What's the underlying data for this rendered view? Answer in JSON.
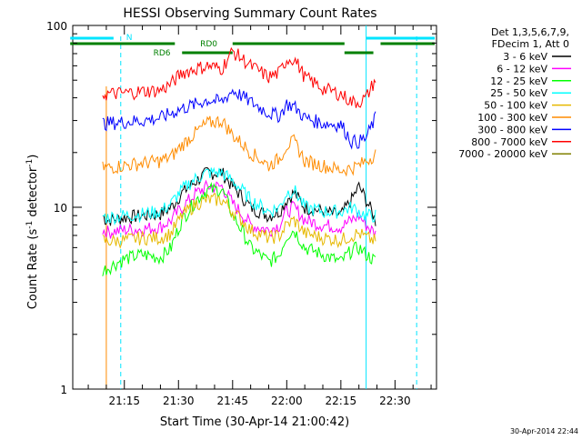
{
  "window": {
    "date_stamp": "30-Apr-2014 22:44"
  },
  "chart_data": {
    "type": "line",
    "title": "HESSI Observing Summary Count Rates",
    "xlabel": "Start Time (30-Apr-14 21:00:42)",
    "ylabel_main": "Count Rate (s",
    "ylabel_sup1": "-1",
    "ylabel_mid": " detector",
    "ylabel_sup2": "-1",
    "ylabel_end": ")",
    "y_scale": "log",
    "ylim": [
      1,
      100
    ],
    "xlim_minutes": [
      21.0,
      22.6
    ],
    "x_ticks": [
      "21:15",
      "21:30",
      "21:45",
      "22:00",
      "22:15",
      "22:30"
    ],
    "y_ticks": [
      "1",
      "10",
      "100"
    ],
    "grid": false,
    "legend_position": "right",
    "legend_header": [
      "Det 1,3,5,6,7,9,",
      "FDecim 1, Att 0"
    ],
    "series": [
      {
        "name": "3 - 6 keV",
        "color": "#000000",
        "x": [
          "21:09",
          "21:10",
          "21:15",
          "21:20",
          "21:25",
          "21:28",
          "21:31",
          "21:35",
          "21:38",
          "21:42",
          "21:45",
          "21:50",
          "21:55",
          "21:58",
          "22:00",
          "22:02",
          "22:05",
          "22:10",
          "22:15",
          "22:18",
          "22:20",
          "22:22",
          "22:25"
        ],
        "y": [
          9,
          8.5,
          8.8,
          9,
          9.2,
          10,
          12,
          14,
          15.5,
          15.5,
          13,
          10,
          9,
          9.5,
          11,
          12,
          10,
          9.5,
          9,
          11,
          13,
          11,
          8
        ]
      },
      {
        "name": "6 - 12 keV",
        "color": "#ff00ff",
        "x": [
          "21:09",
          "21:10",
          "21:15",
          "21:20",
          "21:25",
          "21:28",
          "21:31",
          "21:35",
          "21:38",
          "21:42",
          "21:45",
          "21:50",
          "21:55",
          "21:58",
          "22:00",
          "22:02",
          "22:05",
          "22:10",
          "22:15",
          "22:18",
          "22:20",
          "22:22",
          "22:25"
        ],
        "y": [
          7.5,
          7.3,
          7.5,
          7.6,
          7.8,
          8.5,
          10,
          12,
          13,
          13,
          10.5,
          8,
          7.5,
          8,
          9.5,
          10,
          8.5,
          8,
          7.8,
          8.5,
          9,
          8,
          7
        ]
      },
      {
        "name": "12 - 25 keV",
        "color": "#00ff00",
        "x": [
          "21:09",
          "21:10",
          "21:15",
          "21:20",
          "21:25",
          "21:28",
          "21:31",
          "21:35",
          "21:38",
          "21:42",
          "21:45",
          "21:50",
          "21:55",
          "21:58",
          "22:00",
          "22:02",
          "22:05",
          "22:10",
          "22:15",
          "22:18",
          "22:20",
          "22:22",
          "22:25"
        ],
        "y": [
          4.5,
          4.6,
          5.2,
          5.5,
          5.3,
          6,
          8.5,
          11,
          12.5,
          12.5,
          9,
          6,
          5,
          5.5,
          7,
          7.5,
          6,
          5.5,
          5,
          5.8,
          6,
          5.5,
          5
        ]
      },
      {
        "name": "25 - 50 keV",
        "color": "#00ffff",
        "x": [
          "21:09",
          "21:10",
          "21:15",
          "21:20",
          "21:25",
          "21:28",
          "21:31",
          "21:35",
          "21:38",
          "21:42",
          "21:45",
          "21:50",
          "21:55",
          "21:58",
          "22:00",
          "22:02",
          "22:05",
          "22:10",
          "22:15",
          "22:18",
          "22:20",
          "22:22",
          "22:25"
        ],
        "y": [
          9,
          8.8,
          9,
          9.2,
          9.5,
          10.5,
          12.5,
          14.5,
          15.5,
          15.5,
          14,
          11,
          9.5,
          10,
          12,
          12.5,
          10,
          9.5,
          9.5,
          10,
          9.5,
          9,
          9
        ]
      },
      {
        "name": "50 - 100 keV",
        "color": "#e6b800",
        "x": [
          "21:09",
          "21:10",
          "21:15",
          "21:20",
          "21:25",
          "21:28",
          "21:31",
          "21:35",
          "21:38",
          "21:42",
          "21:45",
          "21:50",
          "21:55",
          "21:58",
          "22:00",
          "22:02",
          "22:05",
          "22:10",
          "22:15",
          "22:18",
          "22:20",
          "22:22",
          "22:25"
        ],
        "y": [
          6.6,
          6.5,
          6.6,
          6.8,
          6.8,
          7.2,
          9,
          10.5,
          11,
          11,
          9.5,
          7.5,
          6.8,
          7,
          8,
          8.5,
          7.2,
          6.8,
          6.6,
          7,
          7.2,
          6.8,
          6.5
        ]
      },
      {
        "name": "100 - 300 keV",
        "color": "#ff8c00",
        "x": [
          "21:09",
          "21:10",
          "21:15",
          "21:20",
          "21:25",
          "21:28",
          "21:31",
          "21:35",
          "21:38",
          "21:42",
          "21:45",
          "21:50",
          "21:55",
          "21:58",
          "22:00",
          "22:02",
          "22:05",
          "22:10",
          "22:15",
          "22:18",
          "22:20",
          "22:22",
          "22:25"
        ],
        "y": [
          16.5,
          16.5,
          17,
          17.5,
          18,
          19,
          22,
          26,
          29,
          30,
          25,
          20,
          17,
          18.5,
          22,
          23,
          18,
          17,
          16,
          16.5,
          17,
          18,
          20
        ]
      },
      {
        "name": "300 - 800 keV",
        "color": "#0000ff",
        "x": [
          "21:09",
          "21:10",
          "21:15",
          "21:20",
          "21:25",
          "21:28",
          "21:31",
          "21:35",
          "21:38",
          "21:42",
          "21:45",
          "21:50",
          "21:55",
          "21:58",
          "22:00",
          "22:02",
          "22:05",
          "22:10",
          "22:15",
          "22:18",
          "22:20",
          "22:22",
          "22:25"
        ],
        "y": [
          29,
          29,
          29.5,
          30,
          31,
          33,
          35,
          37,
          39,
          38,
          44,
          38,
          33,
          32,
          37,
          36,
          31,
          29,
          28.5,
          23,
          23,
          24,
          32
        ]
      },
      {
        "name": "800 - 7000 keV",
        "color": "#ff0000",
        "x": [
          "21:09",
          "21:10",
          "21:15",
          "21:20",
          "21:25",
          "21:28",
          "21:31",
          "21:35",
          "21:38",
          "21:42",
          "21:45",
          "21:50",
          "21:55",
          "21:58",
          "22:00",
          "22:02",
          "22:05",
          "22:10",
          "22:15",
          "22:18",
          "22:20",
          "22:22",
          "22:25"
        ],
        "y": [
          42,
          42,
          42.5,
          43.5,
          44,
          48,
          55,
          58,
          60,
          58,
          72,
          60,
          52,
          55,
          65,
          66,
          52,
          45,
          42,
          38,
          38,
          40,
          52
        ]
      },
      {
        "name": "7000 - 20000 keV",
        "color": "#808000",
        "x": [],
        "y": []
      }
    ],
    "annotations": {
      "flags": [
        {
          "label": "N",
          "color": "#00e5ff"
        },
        {
          "label": "RD0",
          "color": "#008000"
        },
        {
          "label": "RD6",
          "color": "#008000"
        }
      ]
    }
  }
}
